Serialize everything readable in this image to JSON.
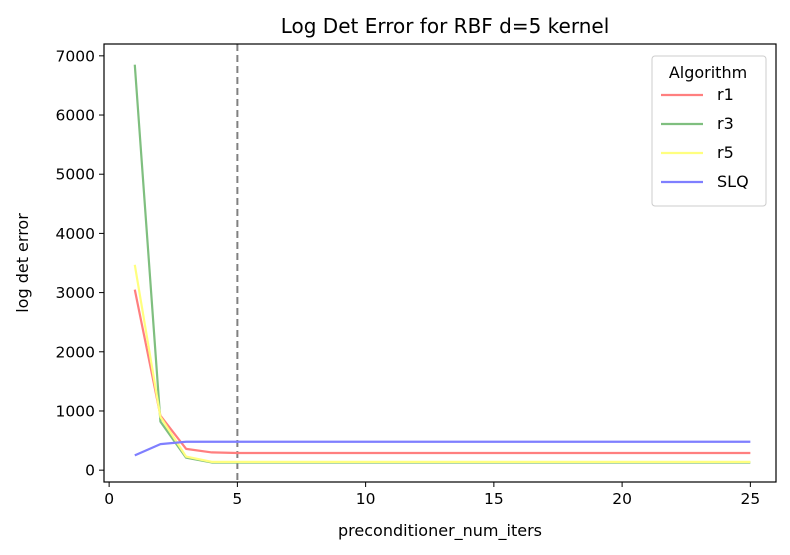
{
  "chart_data": {
    "type": "line",
    "title": "Log Det Error for RBF d=5 kernel",
    "xlabel": "preconditioner_num_iters",
    "ylabel": "log det error",
    "xlim": [
      -0.2,
      26.0
    ],
    "ylim": [
      -200,
      7200
    ],
    "xticks": [
      0,
      5,
      10,
      15,
      20,
      25
    ],
    "yticks": [
      0,
      1000,
      2000,
      3000,
      4000,
      5000,
      6000,
      7000
    ],
    "grid": false,
    "vline": {
      "x": 5,
      "style": "dashed",
      "color": "#808080"
    },
    "legend": {
      "title": "Algorithm",
      "placement": "upper-right"
    },
    "x": [
      1,
      2,
      3,
      4,
      5,
      6,
      7,
      8,
      9,
      10,
      11,
      12,
      13,
      14,
      15,
      16,
      17,
      18,
      19,
      20,
      21,
      22,
      23,
      24,
      25
    ],
    "series": [
      {
        "name": "r1",
        "color": "#ff7f7f",
        "values": [
          3050,
          920,
          360,
          300,
          290,
          290,
          290,
          290,
          290,
          290,
          290,
          290,
          290,
          290,
          290,
          290,
          290,
          290,
          290,
          290,
          290,
          290,
          290,
          290,
          290
        ]
      },
      {
        "name": "r3",
        "color": "#7fbf7f",
        "values": [
          6850,
          820,
          210,
          130,
          130,
          130,
          130,
          130,
          130,
          130,
          130,
          130,
          130,
          130,
          130,
          130,
          130,
          130,
          130,
          130,
          130,
          130,
          130,
          130,
          130
        ]
      },
      {
        "name": "r5",
        "color": "#ffff7f",
        "values": [
          3470,
          900,
          230,
          140,
          140,
          140,
          140,
          140,
          140,
          140,
          140,
          140,
          140,
          140,
          140,
          140,
          140,
          140,
          140,
          140,
          140,
          140,
          140,
          140,
          140
        ]
      },
      {
        "name": "SLQ",
        "color": "#7f7fff",
        "values": [
          250,
          440,
          480,
          480,
          480,
          480,
          480,
          480,
          480,
          480,
          480,
          480,
          480,
          480,
          480,
          480,
          480,
          480,
          480,
          480,
          480,
          480,
          480,
          480,
          480
        ]
      }
    ]
  }
}
